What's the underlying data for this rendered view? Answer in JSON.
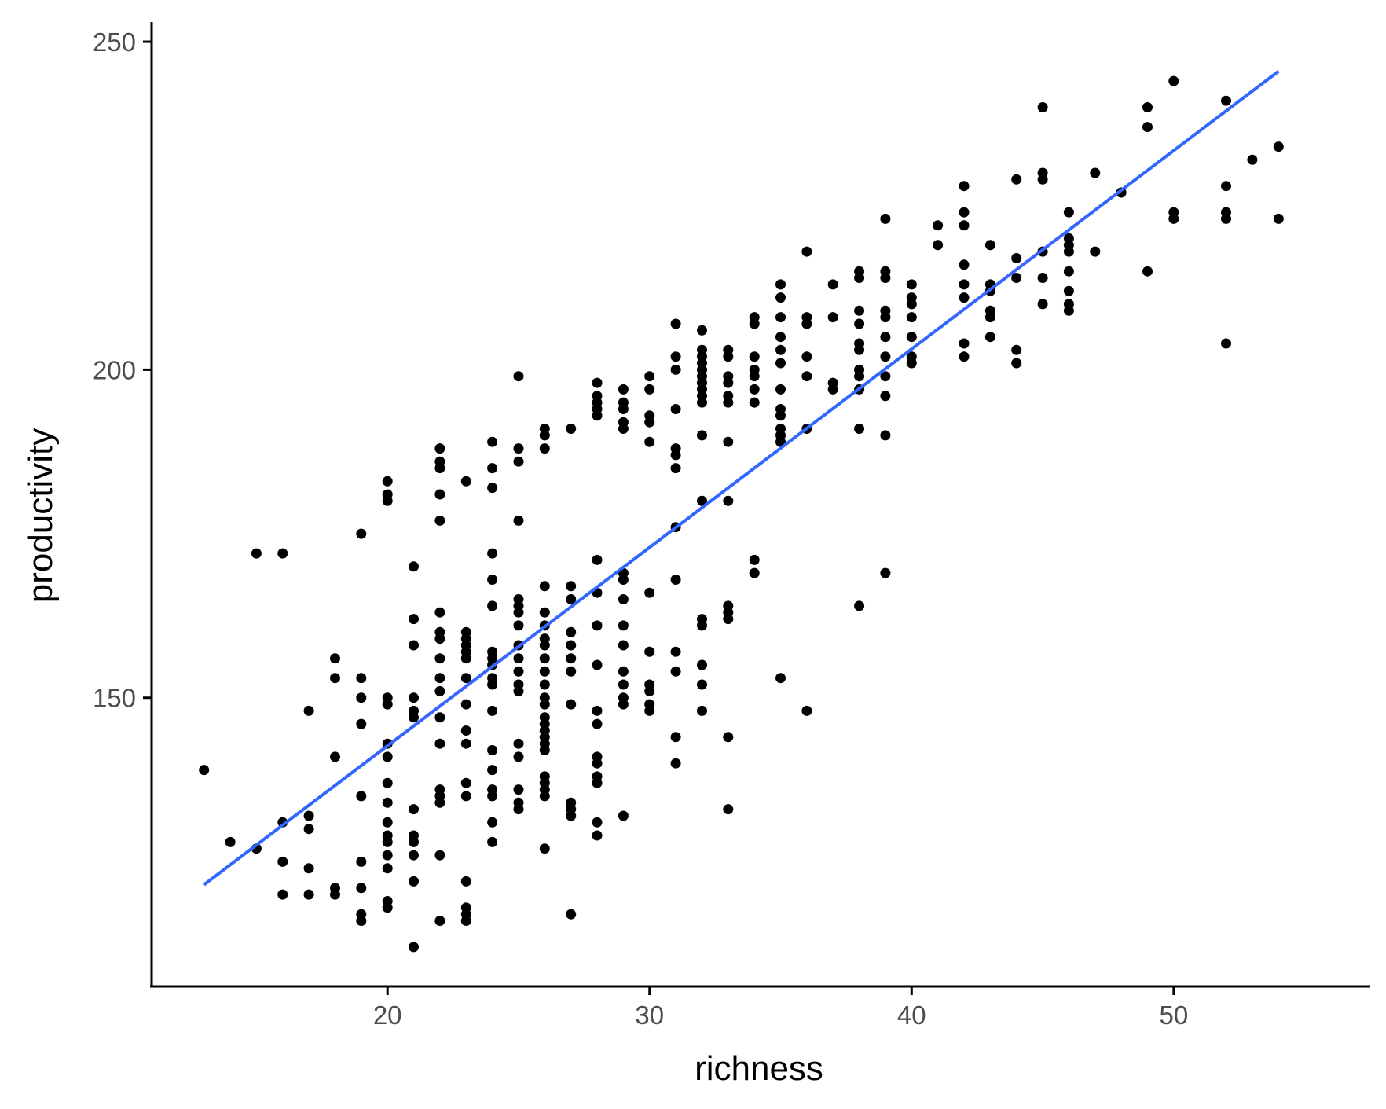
{
  "chart_data": {
    "type": "scatter",
    "title": "",
    "xlabel": "richness",
    "ylabel": "productivity",
    "xlim": [
      11,
      57.5
    ],
    "ylim": [
      106,
      253
    ],
    "x_ticks": [
      20,
      30,
      40,
      50
    ],
    "y_ticks": [
      150,
      200,
      250
    ],
    "grid": false,
    "legend": "none",
    "colors": {
      "points": "#000000",
      "fit_line": "#3366FF",
      "axis": "#000000",
      "tick_text": "#4d4d4d"
    },
    "fit_line": {
      "x": [
        13,
        54
      ],
      "y": [
        121.5,
        245.5
      ]
    },
    "points": [
      [
        13,
        139
      ],
      [
        14,
        128
      ],
      [
        15,
        127
      ],
      [
        15,
        172
      ],
      [
        16,
        120
      ],
      [
        16,
        125
      ],
      [
        16,
        131
      ],
      [
        16,
        172
      ],
      [
        17,
        120
      ],
      [
        17,
        124
      ],
      [
        17,
        130
      ],
      [
        17,
        132
      ],
      [
        17,
        148
      ],
      [
        18,
        120
      ],
      [
        18,
        121
      ],
      [
        18,
        141
      ],
      [
        18,
        153
      ],
      [
        18,
        156
      ],
      [
        19,
        116
      ],
      [
        19,
        117
      ],
      [
        19,
        121
      ],
      [
        19,
        125
      ],
      [
        19,
        135
      ],
      [
        19,
        146
      ],
      [
        19,
        150
      ],
      [
        19,
        153
      ],
      [
        19,
        175
      ],
      [
        20,
        118
      ],
      [
        20,
        119
      ],
      [
        20,
        124
      ],
      [
        20,
        126
      ],
      [
        20,
        128
      ],
      [
        20,
        129
      ],
      [
        20,
        131
      ],
      [
        20,
        134
      ],
      [
        20,
        137
      ],
      [
        20,
        141
      ],
      [
        20,
        143
      ],
      [
        20,
        149
      ],
      [
        20,
        150
      ],
      [
        20,
        180
      ],
      [
        20,
        181
      ],
      [
        20,
        183
      ],
      [
        21,
        112
      ],
      [
        21,
        122
      ],
      [
        21,
        126
      ],
      [
        21,
        128
      ],
      [
        21,
        129
      ],
      [
        21,
        133
      ],
      [
        21,
        147
      ],
      [
        21,
        148
      ],
      [
        21,
        150
      ],
      [
        21,
        158
      ],
      [
        21,
        162
      ],
      [
        21,
        170
      ],
      [
        22,
        116
      ],
      [
        22,
        126
      ],
      [
        22,
        134
      ],
      [
        22,
        135
      ],
      [
        22,
        136
      ],
      [
        22,
        143
      ],
      [
        22,
        147
      ],
      [
        22,
        151
      ],
      [
        22,
        153
      ],
      [
        22,
        156
      ],
      [
        22,
        159
      ],
      [
        22,
        160
      ],
      [
        22,
        163
      ],
      [
        22,
        177
      ],
      [
        22,
        181
      ],
      [
        22,
        185
      ],
      [
        22,
        186
      ],
      [
        22,
        188
      ],
      [
        23,
        116
      ],
      [
        23,
        117
      ],
      [
        23,
        118
      ],
      [
        23,
        122
      ],
      [
        23,
        135
      ],
      [
        23,
        137
      ],
      [
        23,
        143
      ],
      [
        23,
        145
      ],
      [
        23,
        149
      ],
      [
        23,
        153
      ],
      [
        23,
        156
      ],
      [
        23,
        157
      ],
      [
        23,
        158
      ],
      [
        23,
        159
      ],
      [
        23,
        160
      ],
      [
        23,
        183
      ],
      [
        24,
        128
      ],
      [
        24,
        131
      ],
      [
        24,
        135
      ],
      [
        24,
        136
      ],
      [
        24,
        139
      ],
      [
        24,
        142
      ],
      [
        24,
        148
      ],
      [
        24,
        152
      ],
      [
        24,
        153
      ],
      [
        24,
        155
      ],
      [
        24,
        156
      ],
      [
        24,
        157
      ],
      [
        24,
        164
      ],
      [
        24,
        168
      ],
      [
        24,
        172
      ],
      [
        24,
        182
      ],
      [
        24,
        185
      ],
      [
        24,
        189
      ],
      [
        25,
        133
      ],
      [
        25,
        134
      ],
      [
        25,
        136
      ],
      [
        25,
        141
      ],
      [
        25,
        143
      ],
      [
        25,
        151
      ],
      [
        25,
        152
      ],
      [
        25,
        154
      ],
      [
        25,
        156
      ],
      [
        25,
        158
      ],
      [
        25,
        161
      ],
      [
        25,
        163
      ],
      [
        25,
        164
      ],
      [
        25,
        165
      ],
      [
        25,
        177
      ],
      [
        25,
        186
      ],
      [
        25,
        188
      ],
      [
        25,
        199
      ],
      [
        26,
        127
      ],
      [
        26,
        135
      ],
      [
        26,
        136
      ],
      [
        26,
        137
      ],
      [
        26,
        138
      ],
      [
        26,
        142
      ],
      [
        26,
        143
      ],
      [
        26,
        144
      ],
      [
        26,
        145
      ],
      [
        26,
        146
      ],
      [
        26,
        147
      ],
      [
        26,
        149
      ],
      [
        26,
        150
      ],
      [
        26,
        152
      ],
      [
        26,
        154
      ],
      [
        26,
        156
      ],
      [
        26,
        158
      ],
      [
        26,
        159
      ],
      [
        26,
        161
      ],
      [
        26,
        163
      ],
      [
        26,
        167
      ],
      [
        26,
        188
      ],
      [
        26,
        190
      ],
      [
        26,
        191
      ],
      [
        27,
        117
      ],
      [
        27,
        132
      ],
      [
        27,
        133
      ],
      [
        27,
        134
      ],
      [
        27,
        149
      ],
      [
        27,
        154
      ],
      [
        27,
        156
      ],
      [
        27,
        158
      ],
      [
        27,
        160
      ],
      [
        27,
        165
      ],
      [
        27,
        167
      ],
      [
        27,
        191
      ],
      [
        28,
        129
      ],
      [
        28,
        131
      ],
      [
        28,
        137
      ],
      [
        28,
        138
      ],
      [
        28,
        140
      ],
      [
        28,
        141
      ],
      [
        28,
        146
      ],
      [
        28,
        148
      ],
      [
        28,
        155
      ],
      [
        28,
        161
      ],
      [
        28,
        166
      ],
      [
        28,
        171
      ],
      [
        28,
        193
      ],
      [
        28,
        194
      ],
      [
        28,
        195
      ],
      [
        28,
        196
      ],
      [
        28,
        198
      ],
      [
        29,
        132
      ],
      [
        29,
        149
      ],
      [
        29,
        150
      ],
      [
        29,
        152
      ],
      [
        29,
        154
      ],
      [
        29,
        158
      ],
      [
        29,
        161
      ],
      [
        29,
        165
      ],
      [
        29,
        168
      ],
      [
        29,
        169
      ],
      [
        29,
        191
      ],
      [
        29,
        192
      ],
      [
        29,
        194
      ],
      [
        29,
        195
      ],
      [
        29,
        197
      ],
      [
        30,
        148
      ],
      [
        30,
        149
      ],
      [
        30,
        151
      ],
      [
        30,
        152
      ],
      [
        30,
        157
      ],
      [
        30,
        166
      ],
      [
        30,
        189
      ],
      [
        30,
        192
      ],
      [
        30,
        193
      ],
      [
        30,
        197
      ],
      [
        30,
        199
      ],
      [
        31,
        140
      ],
      [
        31,
        144
      ],
      [
        31,
        154
      ],
      [
        31,
        157
      ],
      [
        31,
        168
      ],
      [
        31,
        176
      ],
      [
        31,
        185
      ],
      [
        31,
        187
      ],
      [
        31,
        188
      ],
      [
        31,
        194
      ],
      [
        31,
        200
      ],
      [
        31,
        202
      ],
      [
        31,
        207
      ],
      [
        32,
        148
      ],
      [
        32,
        152
      ],
      [
        32,
        155
      ],
      [
        32,
        161
      ],
      [
        32,
        162
      ],
      [
        32,
        180
      ],
      [
        32,
        190
      ],
      [
        32,
        195
      ],
      [
        32,
        196
      ],
      [
        32,
        197
      ],
      [
        32,
        198
      ],
      [
        32,
        199
      ],
      [
        32,
        200
      ],
      [
        32,
        201
      ],
      [
        32,
        202
      ],
      [
        32,
        203
      ],
      [
        32,
        206
      ],
      [
        33,
        133
      ],
      [
        33,
        144
      ],
      [
        33,
        162
      ],
      [
        33,
        163
      ],
      [
        33,
        164
      ],
      [
        33,
        180
      ],
      [
        33,
        189
      ],
      [
        33,
        195
      ],
      [
        33,
        196
      ],
      [
        33,
        198
      ],
      [
        33,
        199
      ],
      [
        33,
        202
      ],
      [
        33,
        203
      ],
      [
        34,
        169
      ],
      [
        34,
        171
      ],
      [
        34,
        195
      ],
      [
        34,
        197
      ],
      [
        34,
        199
      ],
      [
        34,
        200
      ],
      [
        34,
        202
      ],
      [
        34,
        207
      ],
      [
        34,
        208
      ],
      [
        35,
        153
      ],
      [
        35,
        189
      ],
      [
        35,
        190
      ],
      [
        35,
        191
      ],
      [
        35,
        193
      ],
      [
        35,
        194
      ],
      [
        35,
        197
      ],
      [
        35,
        201
      ],
      [
        35,
        203
      ],
      [
        35,
        205
      ],
      [
        35,
        208
      ],
      [
        35,
        211
      ],
      [
        35,
        213
      ],
      [
        36,
        148
      ],
      [
        36,
        191
      ],
      [
        36,
        199
      ],
      [
        36,
        202
      ],
      [
        36,
        207
      ],
      [
        36,
        208
      ],
      [
        36,
        218
      ],
      [
        37,
        197
      ],
      [
        37,
        198
      ],
      [
        37,
        208
      ],
      [
        37,
        213
      ],
      [
        38,
        164
      ],
      [
        38,
        191
      ],
      [
        38,
        197
      ],
      [
        38,
        199
      ],
      [
        38,
        200
      ],
      [
        38,
        203
      ],
      [
        38,
        204
      ],
      [
        38,
        207
      ],
      [
        38,
        209
      ],
      [
        38,
        214
      ],
      [
        38,
        215
      ],
      [
        39,
        169
      ],
      [
        39,
        190
      ],
      [
        39,
        196
      ],
      [
        39,
        199
      ],
      [
        39,
        202
      ],
      [
        39,
        205
      ],
      [
        39,
        208
      ],
      [
        39,
        209
      ],
      [
        39,
        214
      ],
      [
        39,
        215
      ],
      [
        39,
        223
      ],
      [
        40,
        201
      ],
      [
        40,
        202
      ],
      [
        40,
        205
      ],
      [
        40,
        208
      ],
      [
        40,
        210
      ],
      [
        40,
        211
      ],
      [
        40,
        213
      ],
      [
        41,
        219
      ],
      [
        41,
        222
      ],
      [
        42,
        202
      ],
      [
        42,
        204
      ],
      [
        42,
        211
      ],
      [
        42,
        213
      ],
      [
        42,
        216
      ],
      [
        42,
        222
      ],
      [
        42,
        224
      ],
      [
        42,
        228
      ],
      [
        43,
        205
      ],
      [
        43,
        208
      ],
      [
        43,
        209
      ],
      [
        43,
        212
      ],
      [
        43,
        213
      ],
      [
        43,
        219
      ],
      [
        44,
        201
      ],
      [
        44,
        203
      ],
      [
        44,
        214
      ],
      [
        44,
        217
      ],
      [
        44,
        229
      ],
      [
        45,
        210
      ],
      [
        45,
        214
      ],
      [
        45,
        218
      ],
      [
        45,
        229
      ],
      [
        45,
        230
      ],
      [
        45,
        240
      ],
      [
        46,
        209
      ],
      [
        46,
        210
      ],
      [
        46,
        212
      ],
      [
        46,
        215
      ],
      [
        46,
        218
      ],
      [
        46,
        219
      ],
      [
        46,
        220
      ],
      [
        46,
        224
      ],
      [
        47,
        218
      ],
      [
        47,
        230
      ],
      [
        48,
        227
      ],
      [
        49,
        215
      ],
      [
        49,
        237
      ],
      [
        49,
        240
      ],
      [
        50,
        223
      ],
      [
        50,
        224
      ],
      [
        50,
        244
      ],
      [
        52,
        204
      ],
      [
        52,
        223
      ],
      [
        52,
        224
      ],
      [
        52,
        228
      ],
      [
        52,
        241
      ],
      [
        53,
        232
      ],
      [
        54,
        223
      ],
      [
        54,
        234
      ]
    ]
  }
}
